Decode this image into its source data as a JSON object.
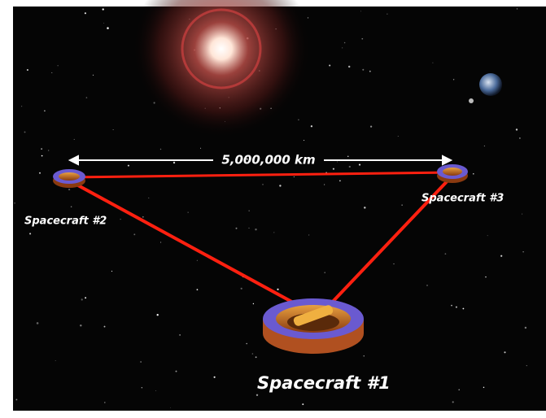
{
  "distance": {
    "label": "5,000,000 km"
  },
  "nodes": [
    {
      "label": "Spacecraft #1"
    },
    {
      "label": "Spacecraft #2"
    },
    {
      "label": "Spacecraft #3"
    }
  ]
}
